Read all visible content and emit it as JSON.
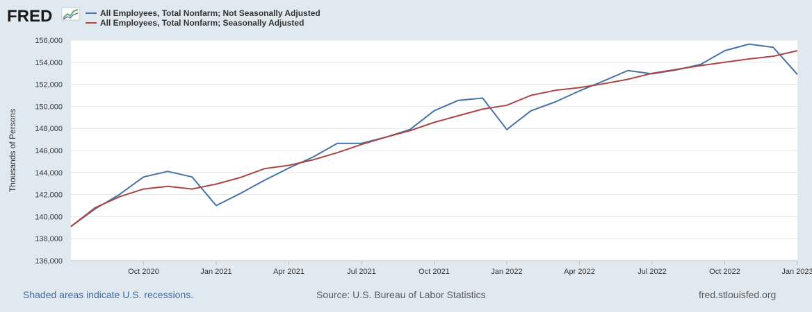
{
  "brand": "FRED",
  "footer": {
    "recession_note": "Shaded areas indicate U.S. recessions.",
    "source": "Source: U.S. Bureau of Labor Statistics",
    "site": "fred.stlouisfed.org"
  },
  "chart_data": {
    "type": "line",
    "ylabel": "Thousands of Persons",
    "ylim": [
      136000,
      156000
    ],
    "yticks": [
      136000,
      138000,
      140000,
      142000,
      144000,
      146000,
      148000,
      150000,
      152000,
      154000,
      156000
    ],
    "ytick_labels": [
      "136,000",
      "138,000",
      "140,000",
      "142,000",
      "144,000",
      "146,000",
      "148,000",
      "150,000",
      "152,000",
      "154,000",
      "156,000"
    ],
    "x": [
      "2020-07",
      "2020-08",
      "2020-09",
      "2020-10",
      "2020-11",
      "2020-12",
      "2021-01",
      "2021-02",
      "2021-03",
      "2021-04",
      "2021-05",
      "2021-06",
      "2021-07",
      "2021-08",
      "2021-09",
      "2021-10",
      "2021-11",
      "2021-12",
      "2022-01",
      "2022-02",
      "2022-03",
      "2022-04",
      "2022-05",
      "2022-06",
      "2022-07",
      "2022-08",
      "2022-09",
      "2022-10",
      "2022-11",
      "2022-12",
      "2023-01"
    ],
    "xticks": [
      {
        "index": 3,
        "label": "Oct 2020"
      },
      {
        "index": 6,
        "label": "Jan 2021"
      },
      {
        "index": 9,
        "label": "Apr 2021"
      },
      {
        "index": 12,
        "label": "Jul 2021"
      },
      {
        "index": 15,
        "label": "Oct 2021"
      },
      {
        "index": 18,
        "label": "Jan 2022"
      },
      {
        "index": 21,
        "label": "Apr 2022"
      },
      {
        "index": 24,
        "label": "Jul 2022"
      },
      {
        "index": 27,
        "label": "Oct 2022"
      },
      {
        "index": 30,
        "label": "Jan 2023"
      }
    ],
    "series": [
      {
        "name": "All Employees, Total Nonfarm; Not Seasonally Adjusted",
        "color": "#4572a7",
        "values": [
          139100,
          140700,
          142000,
          143600,
          144100,
          143600,
          141000,
          142100,
          143300,
          144400,
          145400,
          146650,
          146650,
          147200,
          147900,
          149600,
          150550,
          150750,
          147900,
          149600,
          150400,
          151400,
          152300,
          153250,
          152950,
          153300,
          153800,
          155050,
          155650,
          155350,
          152900
        ]
      },
      {
        "name": "All Employees, Total Nonfarm; Seasonally Adjusted",
        "color": "#aa4643",
        "values": [
          139100,
          140800,
          141800,
          142500,
          142750,
          142500,
          142950,
          143550,
          144350,
          144650,
          145150,
          145800,
          146550,
          147200,
          147800,
          148550,
          149150,
          149750,
          150100,
          151000,
          151450,
          151700,
          152050,
          152450,
          153000,
          153350,
          153700,
          154000,
          154300,
          154550,
          155050
        ]
      }
    ]
  }
}
